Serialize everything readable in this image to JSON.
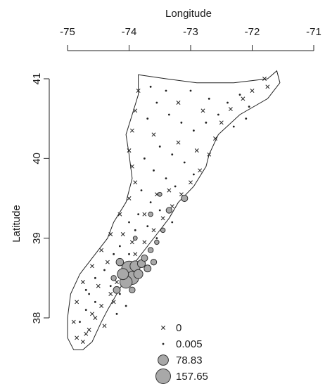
{
  "chart_data": {
    "type": "scatter",
    "x_axis": {
      "label": "Longitude",
      "position": "top",
      "range": [
        -75,
        -71
      ],
      "ticks": [
        -75,
        -74,
        -73,
        -72,
        -71
      ],
      "tick_labels": [
        "-75",
        "-74",
        "-73",
        "-72",
        "-71"
      ]
    },
    "y_axis": {
      "label": "Latitude",
      "position": "left",
      "range": [
        38,
        41
      ],
      "ticks": [
        38,
        39,
        40,
        41
      ],
      "tick_labels": [
        "38",
        "39",
        "40",
        "41"
      ]
    },
    "grid": false,
    "legend": {
      "placement": "bottom-center",
      "entries": [
        {
          "label": "0",
          "marker": "cross",
          "value": 0
        },
        {
          "label": "0.005",
          "marker": "dot",
          "value": 0.005
        },
        {
          "label": "78.83",
          "marker": "circle",
          "value": 78.83
        },
        {
          "label": "157.65",
          "marker": "circle",
          "value": 157.65
        }
      ]
    },
    "region_outline": [
      [
        -73.85,
        41.05
      ],
      [
        -73.4,
        41.0
      ],
      [
        -72.9,
        40.95
      ],
      [
        -72.3,
        40.95
      ],
      [
        -71.75,
        41.0
      ],
      [
        -71.6,
        41.1
      ],
      [
        -71.55,
        40.95
      ],
      [
        -71.75,
        40.75
      ],
      [
        -72.2,
        40.55
      ],
      [
        -72.55,
        40.3
      ],
      [
        -72.7,
        40.05
      ],
      [
        -72.75,
        39.9
      ],
      [
        -72.95,
        39.65
      ],
      [
        -73.2,
        39.45
      ],
      [
        -73.35,
        39.25
      ],
      [
        -73.55,
        39.05
      ],
      [
        -73.7,
        38.9
      ],
      [
        -73.9,
        38.7
      ],
      [
        -74.05,
        38.5
      ],
      [
        -74.2,
        38.3
      ],
      [
        -74.35,
        38.1
      ],
      [
        -74.45,
        37.95
      ],
      [
        -74.6,
        37.7
      ],
      [
        -74.75,
        37.6
      ],
      [
        -74.9,
        37.6
      ],
      [
        -75.0,
        37.75
      ],
      [
        -75.0,
        38.0
      ],
      [
        -74.95,
        38.3
      ],
      [
        -74.8,
        38.55
      ],
      [
        -74.55,
        38.8
      ],
      [
        -74.35,
        39.0
      ],
      [
        -74.25,
        39.2
      ],
      [
        -74.05,
        39.45
      ],
      [
        -73.95,
        39.75
      ],
      [
        -74.0,
        40.05
      ],
      [
        -74.05,
        40.3
      ],
      [
        -73.95,
        40.55
      ],
      [
        -73.85,
        40.8
      ],
      [
        -73.85,
        41.05
      ]
    ],
    "points_zero": [
      [
        -71.8,
        41.0
      ],
      [
        -71.75,
        40.9
      ],
      [
        -72.0,
        40.85
      ],
      [
        -72.15,
        40.75
      ],
      [
        -72.35,
        40.62
      ],
      [
        -72.5,
        40.45
      ],
      [
        -72.6,
        40.25
      ],
      [
        -72.7,
        40.05
      ],
      [
        -72.85,
        39.85
      ],
      [
        -73.0,
        39.7
      ],
      [
        -73.15,
        39.55
      ],
      [
        -73.3,
        39.4
      ],
      [
        -73.45,
        39.25
      ],
      [
        -73.6,
        39.1
      ],
      [
        -73.75,
        38.95
      ],
      [
        -73.9,
        38.8
      ],
      [
        -74.05,
        38.62
      ],
      [
        -74.2,
        38.45
      ],
      [
        -74.3,
        38.3
      ],
      [
        -74.45,
        38.15
      ],
      [
        -74.55,
        38.0
      ],
      [
        -74.65,
        37.85
      ],
      [
        -74.75,
        37.7
      ],
      [
        -74.85,
        37.75
      ],
      [
        -74.9,
        37.95
      ],
      [
        -74.85,
        38.2
      ],
      [
        -74.75,
        38.45
      ],
      [
        -74.6,
        38.65
      ],
      [
        -74.45,
        38.85
      ],
      [
        -74.3,
        39.05
      ],
      [
        -74.15,
        39.3
      ],
      [
        -74.0,
        39.5
      ],
      [
        -73.9,
        39.7
      ],
      [
        -73.95,
        39.9
      ],
      [
        -74.0,
        40.1
      ],
      [
        -73.95,
        40.35
      ],
      [
        -73.9,
        40.6
      ],
      [
        -73.85,
        40.85
      ],
      [
        -73.2,
        40.7
      ],
      [
        -72.8,
        40.6
      ],
      [
        -73.6,
        40.3
      ],
      [
        -73.2,
        40.2
      ],
      [
        -72.9,
        40.1
      ],
      [
        -73.55,
        39.55
      ],
      [
        -73.35,
        39.6
      ],
      [
        -73.75,
        39.3
      ],
      [
        -74.1,
        39.05
      ],
      [
        -73.95,
        38.95
      ],
      [
        -74.35,
        38.7
      ],
      [
        -74.1,
        38.5
      ],
      [
        -74.5,
        38.4
      ],
      [
        -74.25,
        38.2
      ],
      [
        -74.6,
        38.05
      ],
      [
        -74.4,
        37.9
      ],
      [
        -74.7,
        37.8
      ]
    ],
    "points_small": [
      [
        -72.2,
        40.8
      ],
      [
        -72.05,
        40.65
      ],
      [
        -72.4,
        40.7
      ],
      [
        -72.55,
        40.55
      ],
      [
        -72.75,
        40.45
      ],
      [
        -72.95,
        40.35
      ],
      [
        -73.15,
        40.45
      ],
      [
        -73.35,
        40.55
      ],
      [
        -73.55,
        40.7
      ],
      [
        -73.7,
        40.5
      ],
      [
        -73.5,
        40.15
      ],
      [
        -73.3,
        40.05
      ],
      [
        -73.1,
        39.95
      ],
      [
        -72.95,
        39.8
      ],
      [
        -73.75,
        40.0
      ],
      [
        -73.6,
        39.85
      ],
      [
        -73.4,
        39.75
      ],
      [
        -73.25,
        39.65
      ],
      [
        -73.8,
        39.6
      ],
      [
        -73.65,
        39.45
      ],
      [
        -73.5,
        39.35
      ],
      [
        -73.3,
        39.2
      ],
      [
        -73.85,
        39.3
      ],
      [
        -73.7,
        39.15
      ],
      [
        -73.55,
        39.0
      ],
      [
        -74.0,
        39.2
      ],
      [
        -73.9,
        39.1
      ],
      [
        -74.15,
        38.9
      ],
      [
        -74.0,
        38.8
      ],
      [
        -73.85,
        38.7
      ],
      [
        -74.25,
        38.8
      ],
      [
        -74.4,
        38.6
      ],
      [
        -74.55,
        38.5
      ],
      [
        -74.3,
        38.4
      ],
      [
        -74.15,
        38.3
      ],
      [
        -74.65,
        38.3
      ],
      [
        -74.55,
        38.2
      ],
      [
        -74.7,
        38.1
      ],
      [
        -74.8,
        37.95
      ],
      [
        -74.7,
        38.35
      ],
      [
        -74.2,
        38.05
      ],
      [
        -74.05,
        38.15
      ],
      [
        -73.0,
        40.85
      ],
      [
        -72.7,
        40.75
      ],
      [
        -73.4,
        40.85
      ],
      [
        -73.65,
        40.9
      ],
      [
        -72.3,
        40.4
      ],
      [
        -72.1,
        40.5
      ]
    ],
    "points_sized": [
      {
        "lon": -74.0,
        "lat": 38.62,
        "value": 157.65
      },
      {
        "lon": -73.95,
        "lat": 38.5,
        "value": 120.0
      },
      {
        "lon": -74.05,
        "lat": 38.45,
        "value": 110.0
      },
      {
        "lon": -73.9,
        "lat": 38.65,
        "value": 78.83
      },
      {
        "lon": -74.1,
        "lat": 38.55,
        "value": 90.0
      },
      {
        "lon": -73.85,
        "lat": 38.55,
        "value": 60.0
      },
      {
        "lon": -73.8,
        "lat": 38.68,
        "value": 45.0
      },
      {
        "lon": -73.7,
        "lat": 38.62,
        "value": 35.0
      },
      {
        "lon": -74.15,
        "lat": 38.7,
        "value": 40.0
      },
      {
        "lon": -73.75,
        "lat": 38.75,
        "value": 30.0
      },
      {
        "lon": -73.6,
        "lat": 38.7,
        "value": 25.0
      },
      {
        "lon": -73.65,
        "lat": 38.85,
        "value": 20.0
      },
      {
        "lon": -73.55,
        "lat": 38.95,
        "value": 15.0
      },
      {
        "lon": -73.45,
        "lat": 39.1,
        "value": 15.0
      },
      {
        "lon": -73.35,
        "lat": 39.35,
        "value": 25.0
      },
      {
        "lon": -73.1,
        "lat": 39.5,
        "value": 30.0
      },
      {
        "lon": -74.2,
        "lat": 38.35,
        "value": 35.0
      },
      {
        "lon": -74.25,
        "lat": 38.5,
        "value": 20.0
      },
      {
        "lon": -73.95,
        "lat": 38.35,
        "value": 25.0
      },
      {
        "lon": -73.65,
        "lat": 39.3,
        "value": 15.0
      },
      {
        "lon": -73.9,
        "lat": 39.0,
        "value": 12.0
      },
      {
        "lon": -73.5,
        "lat": 39.55,
        "value": 12.0
      }
    ]
  }
}
